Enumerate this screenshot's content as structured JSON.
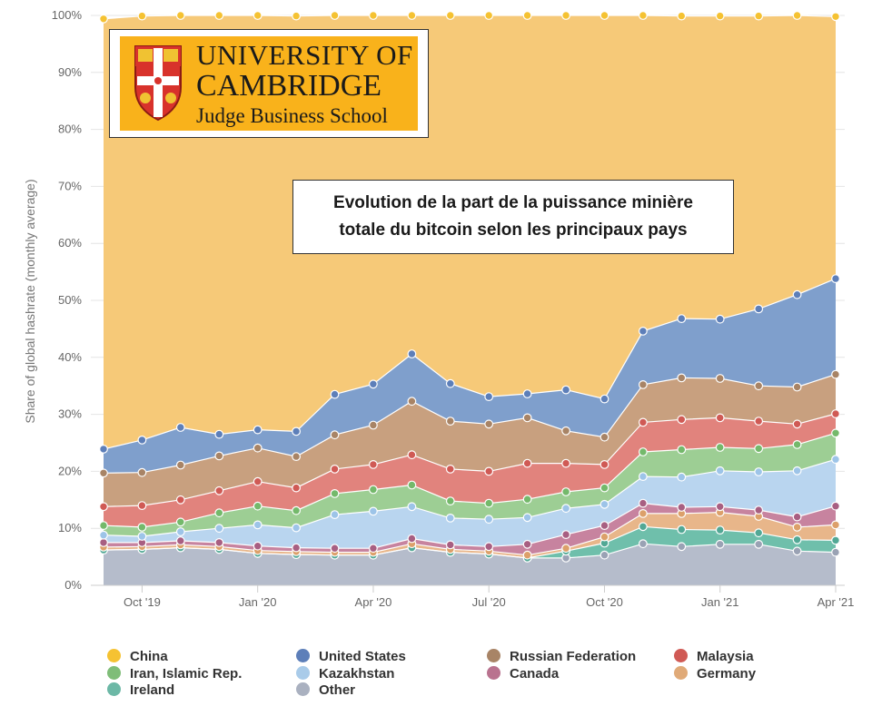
{
  "logo": {
    "line1": "UNIVERSITY OF",
    "line2": "CAMBRIDGE",
    "line3": "Judge Business School"
  },
  "title_box": {
    "line1": "Evolution de la part de la puissance minière",
    "line2": "totale du bitcoin selon les principaux pays"
  },
  "chart_data": {
    "type": "area",
    "stacked": true,
    "ylabel": "Share of global hashrate (monthly average)",
    "ylim": [
      0,
      100
    ],
    "y_unit": "%",
    "y_ticks": [
      "0%",
      "10%",
      "20%",
      "30%",
      "40%",
      "50%",
      "60%",
      "70%",
      "80%",
      "90%",
      "100%"
    ],
    "x": [
      "2019-09",
      "2019-10",
      "2019-11",
      "2019-12",
      "2020-01",
      "2020-02",
      "2020-03",
      "2020-04",
      "2020-05",
      "2020-06",
      "2020-07",
      "2020-08",
      "2020-09",
      "2020-10",
      "2020-11",
      "2020-12",
      "2021-01",
      "2021-02",
      "2021-03",
      "2021-04"
    ],
    "x_ticks": [
      {
        "label": "Oct '19",
        "x": "2019-10"
      },
      {
        "label": "Jan '20",
        "x": "2020-01"
      },
      {
        "label": "Apr '20",
        "x": "2020-04"
      },
      {
        "label": "Jul '20",
        "x": "2020-07"
      },
      {
        "label": "Oct '20",
        "x": "2020-10"
      },
      {
        "label": "Jan '21",
        "x": "2021-01"
      },
      {
        "label": "Apr '21",
        "x": "2021-04"
      }
    ],
    "grid": true,
    "legend_position": "bottom",
    "series": [
      {
        "name": "Other",
        "color": "#b5bccb",
        "values": [
          6.2,
          6.3,
          6.6,
          6.3,
          5.6,
          5.4,
          5.3,
          5.3,
          6.6,
          5.8,
          5.5,
          4.8,
          4.8,
          5.3,
          7.3,
          6.8,
          7.2,
          7.2,
          6.0,
          5.8
        ]
      },
      {
        "name": "Ireland",
        "color": "#6fbfab",
        "values": [
          0.0,
          0.0,
          0.0,
          0.0,
          0.0,
          0.0,
          0.0,
          0.0,
          0.0,
          0.0,
          0.0,
          0.0,
          1.2,
          2.1,
          3.0,
          3.0,
          2.5,
          2.0,
          2.0,
          2.1
        ]
      },
      {
        "name": "Germany",
        "color": "#e8b68a",
        "values": [
          0.5,
          0.5,
          0.5,
          0.5,
          0.5,
          0.5,
          0.5,
          0.5,
          0.7,
          0.5,
          0.5,
          0.5,
          0.5,
          1.1,
          2.3,
          2.8,
          3.1,
          2.9,
          2.2,
          2.7
        ]
      },
      {
        "name": "Canada",
        "color": "#c7839f",
        "values": [
          0.8,
          0.7,
          0.7,
          0.7,
          0.8,
          0.7,
          0.7,
          0.7,
          0.9,
          0.8,
          0.8,
          1.9,
          2.4,
          2.0,
          1.8,
          1.1,
          1.0,
          1.1,
          1.8,
          3.3
        ]
      },
      {
        "name": "Kazakhstan",
        "color": "#b9d5ef",
        "values": [
          1.3,
          1.1,
          1.6,
          2.5,
          3.7,
          3.5,
          5.9,
          6.5,
          5.6,
          4.7,
          4.8,
          4.7,
          4.6,
          3.7,
          4.7,
          5.3,
          6.3,
          6.7,
          8.1,
          8.2
        ]
      },
      {
        "name": "Iran, Islamic Rep.",
        "color": "#9dce94",
        "values": [
          1.7,
          1.6,
          1.7,
          2.7,
          3.3,
          3.0,
          3.7,
          3.8,
          3.8,
          3.0,
          2.8,
          3.2,
          2.9,
          2.9,
          4.3,
          4.8,
          4.1,
          4.1,
          4.6,
          4.6
        ]
      },
      {
        "name": "Malaysia",
        "color": "#e1837d",
        "values": [
          3.3,
          3.8,
          3.9,
          3.9,
          4.3,
          4.0,
          4.3,
          4.4,
          5.3,
          5.6,
          5.6,
          6.3,
          5.0,
          4.1,
          5.2,
          5.3,
          5.2,
          4.8,
          3.6,
          3.4
        ]
      },
      {
        "name": "Russian Federation",
        "color": "#c8a07f",
        "values": [
          5.9,
          5.8,
          6.1,
          6.1,
          5.9,
          5.5,
          6.0,
          6.9,
          9.4,
          8.4,
          8.3,
          8.0,
          5.7,
          4.8,
          6.6,
          7.3,
          6.9,
          6.2,
          6.5,
          6.9
        ]
      },
      {
        "name": "United States",
        "color": "#7f9fcc",
        "values": [
          4.2,
          5.7,
          6.6,
          3.8,
          3.2,
          4.4,
          7.1,
          7.2,
          8.3,
          6.6,
          4.8,
          4.2,
          7.2,
          6.7,
          9.4,
          10.4,
          10.4,
          13.5,
          16.2,
          16.8
        ]
      },
      {
        "name": "China",
        "color": "#f6c978",
        "values": [
          75.5,
          74.4,
          72.3,
          73.5,
          72.7,
          72.9,
          66.8,
          64.7,
          59.5,
          64.6,
          66.9,
          66.5,
          66.9,
          67.4,
          55.5,
          53.1,
          53.2,
          51.4,
          49.0,
          46.0
        ]
      }
    ],
    "dot_colors": {
      "China": "#f5c232",
      "United States": "#5d7fb9",
      "Russian Federation": "#a88466",
      "Malaysia": "#d05a55",
      "Iran, Islamic Rep.": "#74b96b",
      "Kazakhstan": "#9dc4e8",
      "Canada": "#a85f82",
      "Germany": "#dca06a",
      "Ireland": "#52a895",
      "Other": "#9aa2b4"
    }
  },
  "legend": [
    {
      "label": "China",
      "color": "#f5c232"
    },
    {
      "label": "United States",
      "color": "#5d7fb9"
    },
    {
      "label": "Russian Federation",
      "color": "#a88466"
    },
    {
      "label": "Malaysia",
      "color": "#d05a55"
    },
    {
      "label": "Iran, Islamic Rep.",
      "color": "#7fbd78"
    },
    {
      "label": "Kazakhstan",
      "color": "#a9cbe9"
    },
    {
      "label": "Canada",
      "color": "#b9728f"
    },
    {
      "label": "Germany",
      "color": "#e0aa78"
    },
    {
      "label": "Ireland",
      "color": "#6cb8a6"
    },
    {
      "label": "Other",
      "color": "#aab1c0"
    }
  ]
}
